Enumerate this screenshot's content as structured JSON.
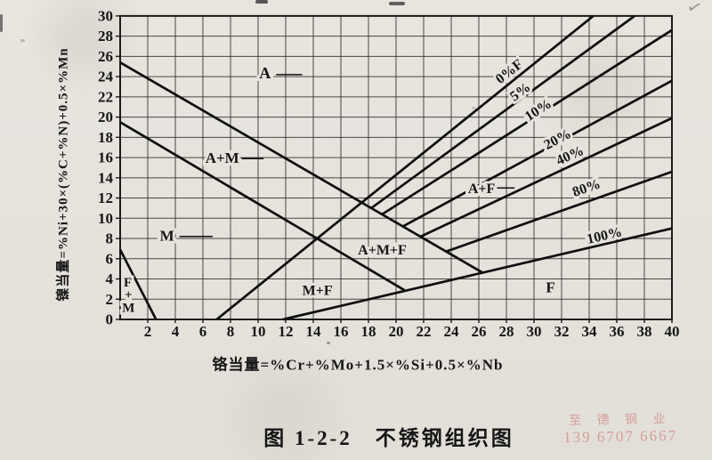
{
  "page": {
    "background": "#e6e3dd",
    "ink": "#161616",
    "grid_color": "#2e2c2a",
    "line_color": "#0f0f0f"
  },
  "watermark": {
    "line1": "至 德 钢 业",
    "line2": "139 6707 6667",
    "color": "rgba(201,109,109,0.58)"
  },
  "chart_data": {
    "type": "line",
    "title": "图 1-2-2　不锈钢组织图",
    "xlabel": "铬当量=%Cr+%Mo+1.5×%Si+0.5×%Nb",
    "ylabel": "镍当量=%Ni+30×(%C+%N)+0.5×%Mn",
    "xlim": [
      0,
      40
    ],
    "ylim": [
      0,
      30
    ],
    "x_ticks": [
      2,
      4,
      6,
      8,
      10,
      12,
      14,
      16,
      18,
      20,
      22,
      24,
      26,
      28,
      30,
      32,
      34,
      36,
      38,
      40
    ],
    "y_ticks": [
      0,
      2,
      4,
      6,
      8,
      10,
      12,
      14,
      16,
      18,
      20,
      22,
      24,
      26,
      28,
      30
    ],
    "grid": true,
    "legend": "none",
    "boundary_lines": [
      {
        "name": "A / A+M boundary",
        "points": [
          [
            0,
            25.4
          ],
          [
            26.3,
            4.6
          ]
        ]
      },
      {
        "name": "A+M / M boundary",
        "points": [
          [
            0,
            19.5
          ],
          [
            20.6,
            2.9
          ]
        ]
      },
      {
        "name": "F+M corner boundary",
        "points": [
          [
            0,
            6.9
          ],
          [
            2.6,
            0
          ]
        ]
      },
      {
        "name": "M / M+F boundary and 0% ferrite line",
        "points": [
          [
            7,
            0
          ],
          [
            34.3,
            30
          ]
        ]
      },
      {
        "name": "100% ferrite line",
        "points": [
          [
            11.8,
            0
          ],
          [
            40,
            9.0
          ]
        ]
      },
      {
        "name": "5% ferrite line",
        "points": [
          [
            18.2,
            11.0
          ],
          [
            37.3,
            30
          ]
        ]
      },
      {
        "name": "10% ferrite line",
        "points": [
          [
            19.0,
            10.4
          ],
          [
            40,
            28.6
          ]
        ]
      },
      {
        "name": "20% ferrite line",
        "points": [
          [
            20.5,
            9.2
          ],
          [
            40,
            23.6
          ]
        ]
      },
      {
        "name": "40% ferrite line",
        "points": [
          [
            21.8,
            8.2
          ],
          [
            40,
            19.9
          ]
        ]
      },
      {
        "name": "80% ferrite line",
        "points": [
          [
            23.6,
            6.7
          ],
          [
            40,
            14.6
          ]
        ]
      }
    ],
    "leader_dashes": [
      {
        "name": "A label leader",
        "points": [
          [
            11.3,
            24.2
          ],
          [
            13.2,
            24.2
          ]
        ]
      },
      {
        "name": "A+M label leader",
        "points": [
          [
            8.8,
            15.9
          ],
          [
            10.4,
            15.9
          ]
        ]
      },
      {
        "name": "M label leader",
        "points": [
          [
            4.3,
            8.2
          ],
          [
            6.7,
            8.2
          ]
        ]
      },
      {
        "name": "A+F label leader",
        "points": [
          [
            27.3,
            13.0
          ],
          [
            28.6,
            13.0
          ]
        ]
      }
    ],
    "region_labels": [
      {
        "text": "A",
        "x": 10.5,
        "y": 24.4,
        "size": 18
      },
      {
        "text": "A+M",
        "x": 7.4,
        "y": 16.0,
        "size": 17
      },
      {
        "text": "M",
        "x": 3.4,
        "y": 8.3,
        "size": 17
      },
      {
        "text": "F",
        "x": 0.55,
        "y": 3.7,
        "size": 15
      },
      {
        "text": "+",
        "x": 0.6,
        "y": 2.5,
        "size": 15
      },
      {
        "text": "M",
        "x": 0.6,
        "y": 1.2,
        "size": 15
      },
      {
        "text": "M+F",
        "x": 14.3,
        "y": 2.9,
        "size": 16
      },
      {
        "text": "A+M+F",
        "x": 19.0,
        "y": 6.9,
        "size": 16
      },
      {
        "text": "A+F",
        "x": 26.2,
        "y": 13.0,
        "size": 16
      },
      {
        "text": "F",
        "x": 31.2,
        "y": 3.2,
        "size": 17
      }
    ],
    "ferrite_percent_labels": [
      {
        "text": "0%F",
        "x": 28.2,
        "y": 24.5,
        "rot": -38
      },
      {
        "text": "5%",
        "x": 29.0,
        "y": 22.5,
        "rot": -36
      },
      {
        "text": "10%",
        "x": 30.3,
        "y": 20.7,
        "rot": -33
      },
      {
        "text": "20%",
        "x": 31.7,
        "y": 17.8,
        "rot": -28
      },
      {
        "text": "40%",
        "x": 32.6,
        "y": 16.2,
        "rot": -24
      },
      {
        "text": "80%",
        "x": 33.8,
        "y": 13.0,
        "rot": -19
      },
      {
        "text": "100%",
        "x": 35.1,
        "y": 8.3,
        "rot": -13
      }
    ]
  }
}
